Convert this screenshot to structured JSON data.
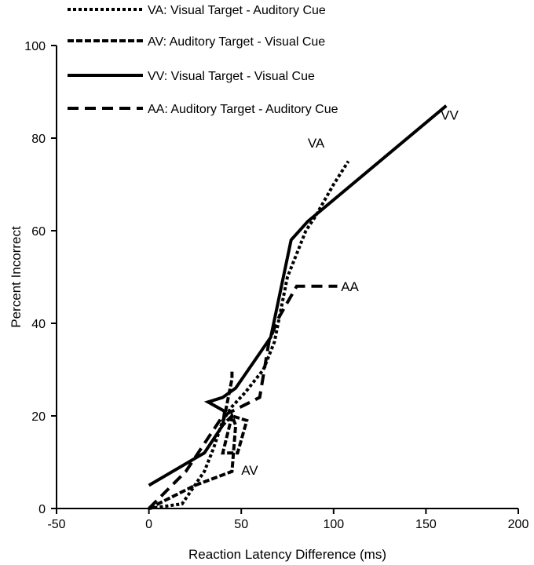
{
  "chart_data": {
    "type": "line",
    "xlabel": "Reaction Latency Difference (ms)",
    "ylabel": "Percent Incorrect",
    "xlim": [
      -50,
      200
    ],
    "ylim": [
      0,
      100
    ],
    "xticks": [
      -50,
      0,
      50,
      100,
      150,
      200
    ],
    "yticks": [
      0,
      20,
      40,
      60,
      80,
      100
    ],
    "grid": false,
    "legend_position": "top-left",
    "series": [
      {
        "name": "VA: Visual Target - Auditory Cue",
        "annotation": "VA",
        "dash": "dotted",
        "x": [
          0,
          18,
          30,
          35,
          40,
          45,
          52,
          58,
          62,
          68,
          72,
          75,
          80,
          85,
          90,
          100,
          108
        ],
        "y": [
          0,
          1,
          8,
          13,
          19,
          22,
          25,
          28,
          30,
          36,
          44,
          50,
          55,
          60,
          63,
          70,
          75
        ]
      },
      {
        "name": "AV: Auditory Target - Visual Cue",
        "annotation": "AV",
        "dash": "dense-dashed",
        "x": [
          0,
          10,
          25,
          45,
          47,
          45,
          40,
          48,
          53,
          45,
          40,
          45,
          45
        ],
        "y": [
          0,
          2,
          5,
          8,
          18,
          20,
          12,
          12,
          19,
          20,
          18,
          28,
          30
        ]
      },
      {
        "name": "VV: Visual Target - Visual Cue",
        "annotation": "VV",
        "dash": "solid",
        "x": [
          0,
          30,
          40,
          41,
          32,
          40,
          47,
          66,
          77,
          86,
          161
        ],
        "y": [
          5,
          12,
          18,
          21,
          23,
          24,
          26,
          37,
          58,
          62,
          87
        ]
      },
      {
        "name": "AA: Auditory Target - Auditory Cue",
        "annotation": "AA",
        "dash": "dashed",
        "x": [
          0,
          10,
          20,
          40,
          60,
          65,
          70,
          80,
          90,
          102
        ],
        "y": [
          0,
          4,
          8,
          20,
          24,
          36,
          41,
          48,
          48,
          48
        ]
      }
    ]
  }
}
